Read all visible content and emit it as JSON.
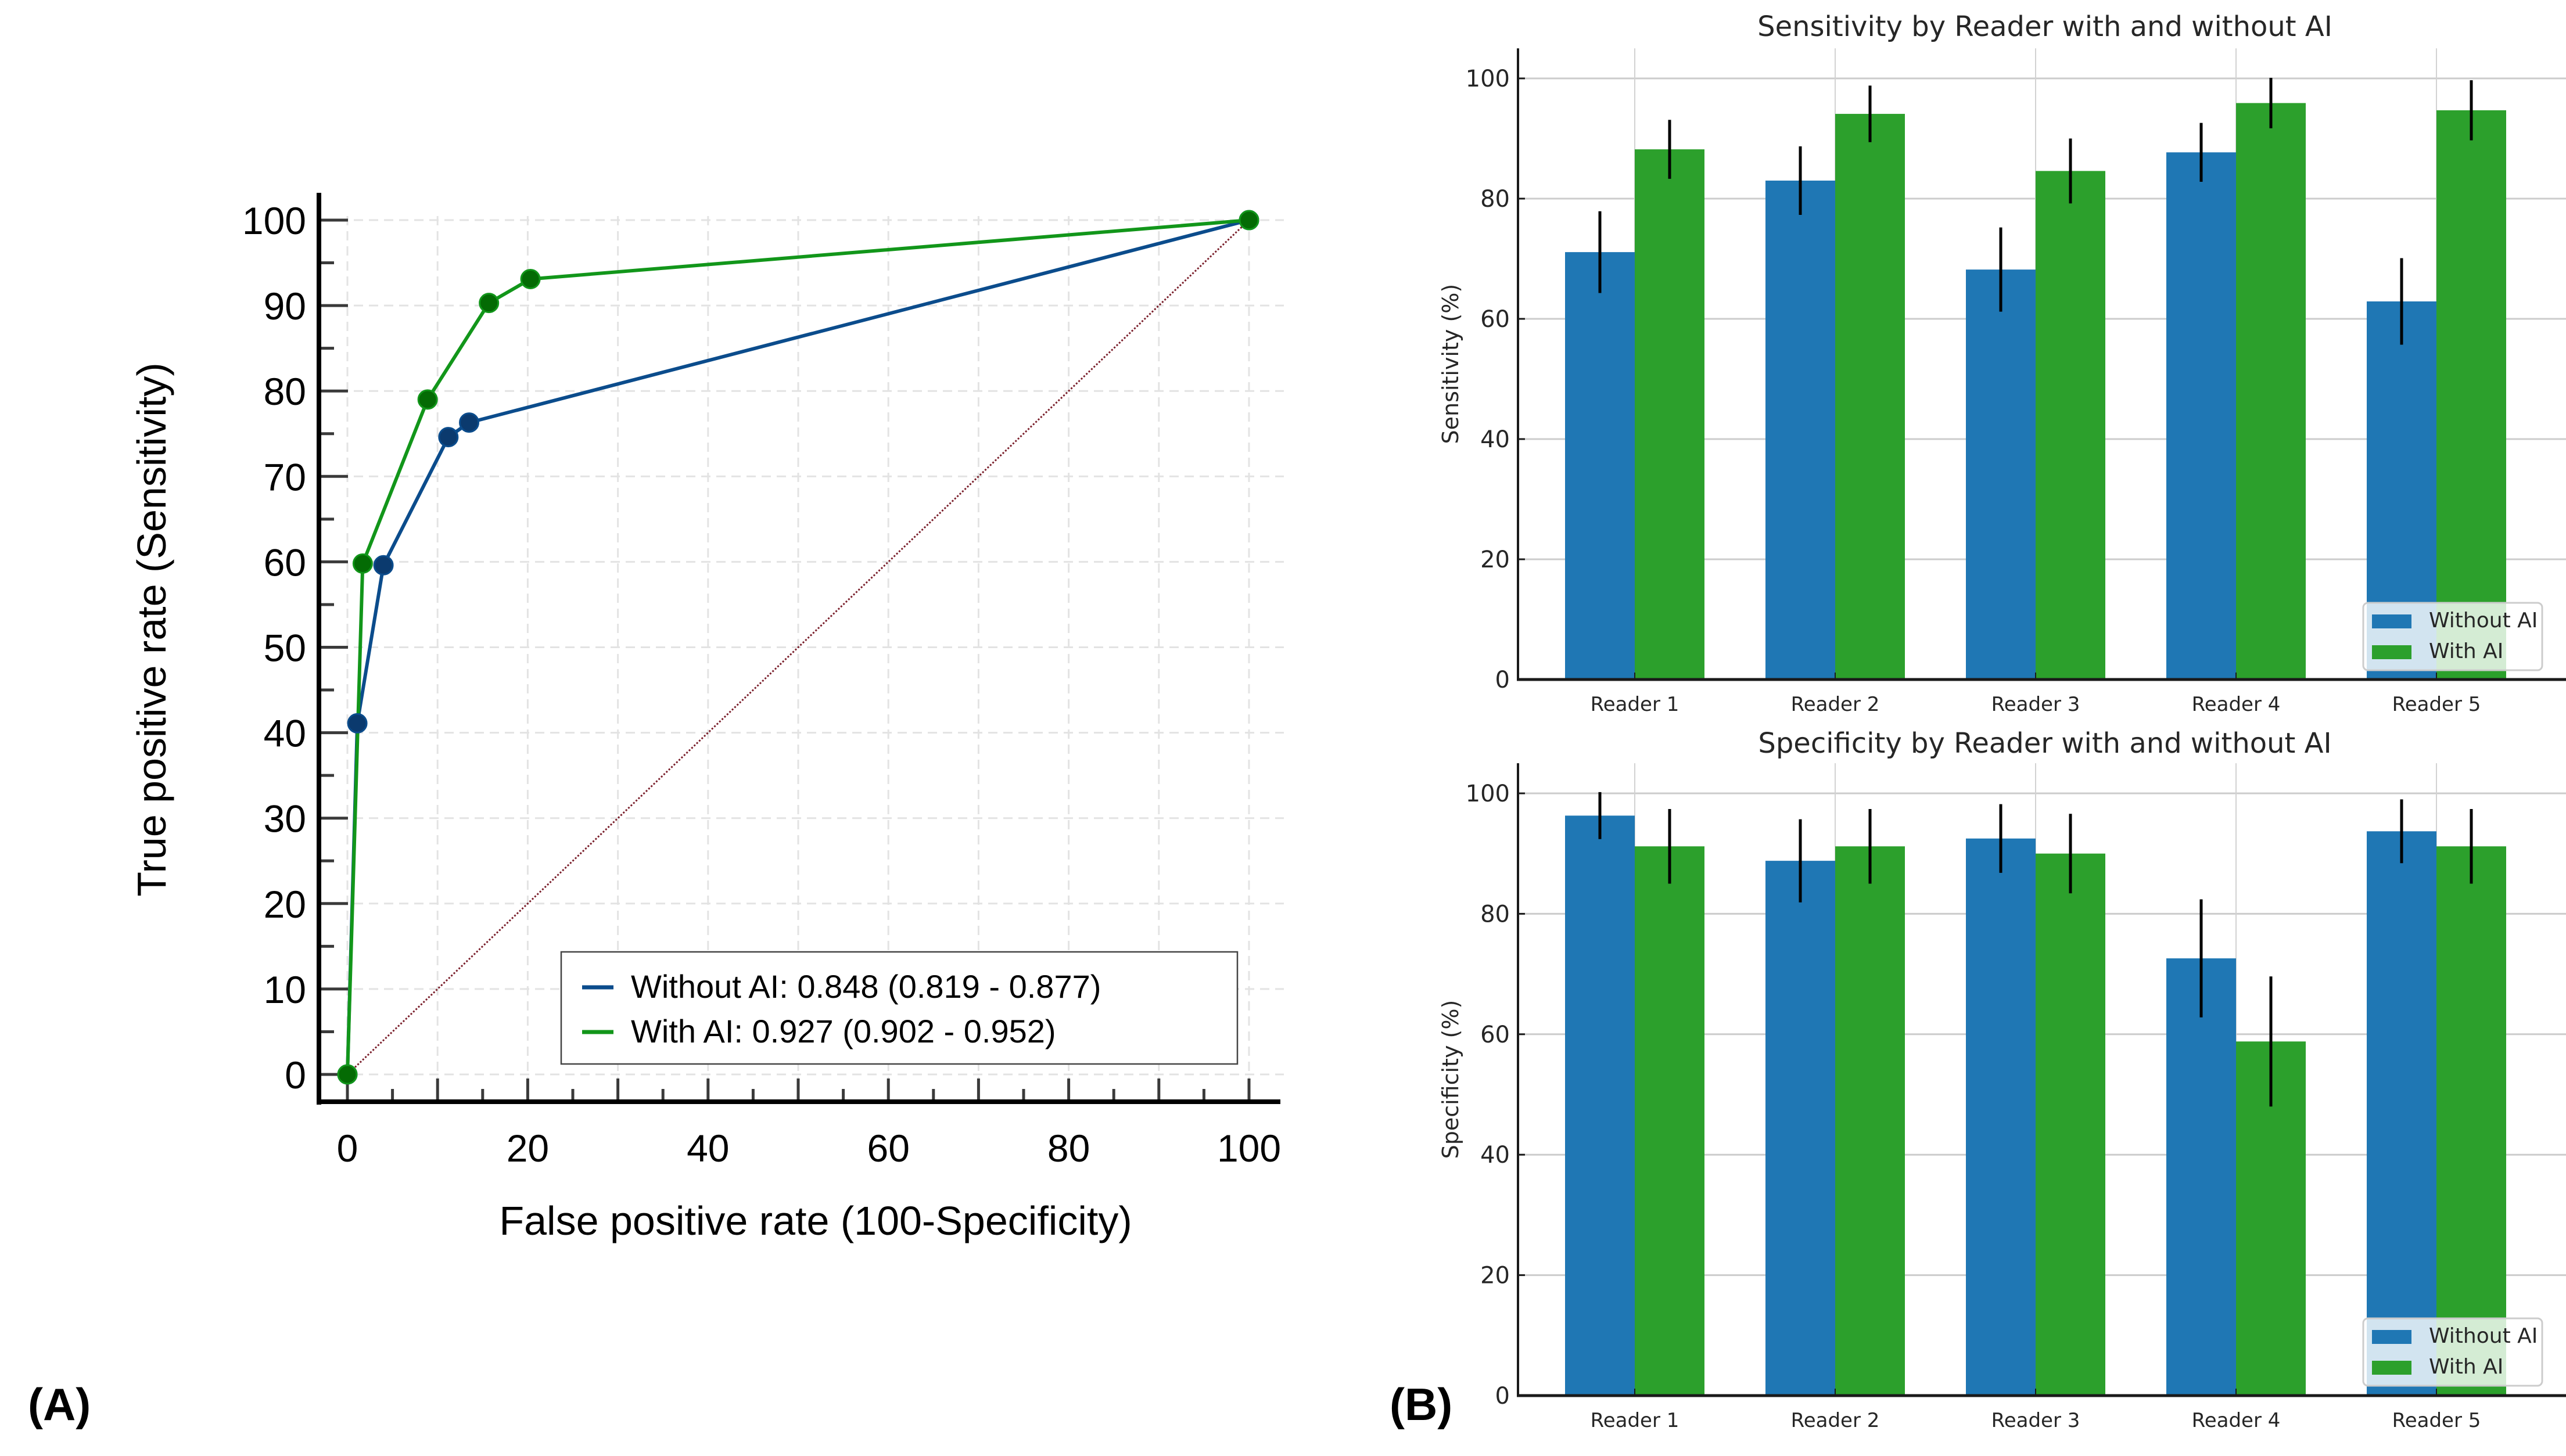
{
  "panels": {
    "a_label": "(A)",
    "b_label": "(B)"
  },
  "chart_data": [
    {
      "type": "line",
      "title": "",
      "xlabel": "False positive rate (100-Specificity)",
      "ylabel": "True positive rate (Sensitivity)",
      "xlim": [
        0,
        100
      ],
      "ylim": [
        0,
        100
      ],
      "xticks": [
        0,
        20,
        40,
        60,
        80,
        100
      ],
      "yticks": [
        0,
        10,
        20,
        30,
        40,
        50,
        60,
        70,
        80,
        90,
        100
      ],
      "grid": true,
      "legend_position": "bottom-right",
      "reference_line": {
        "name": "chance",
        "x": [
          0,
          100
        ],
        "y": [
          0,
          100
        ],
        "color": "#7a1f2b",
        "style": "dotted"
      },
      "series": [
        {
          "name": "Without AI",
          "legend": "Without AI: 0.848 (0.819 - 0.877)",
          "color": "#0b4c8c",
          "marker_color": "#0b3a6e",
          "x": [
            0,
            1.1,
            4.0,
            11.2,
            13.5,
            100
          ],
          "y": [
            0,
            41.1,
            59.6,
            74.6,
            76.3,
            100
          ]
        },
        {
          "name": "With AI",
          "legend": "With AI: 0.927 (0.902 - 0.952)",
          "color": "#12961a",
          "marker_color": "#046b04",
          "x": [
            0,
            1.7,
            8.9,
            15.7,
            20.3,
            100
          ],
          "y": [
            0,
            59.8,
            79.0,
            90.3,
            93.1,
            100
          ]
        }
      ]
    },
    {
      "type": "bar",
      "title": "Sensitivity by Reader with and without AI",
      "xlabel": "",
      "ylabel": "Sensitivity (%)",
      "ylim": [
        0,
        105
      ],
      "yticks": [
        0,
        20,
        40,
        60,
        80,
        100
      ],
      "grid": true,
      "legend_position": "bottom-right",
      "categories": [
        "Reader 1",
        "Reader 2",
        "Reader 3",
        "Reader 4",
        "Reader 5"
      ],
      "series": [
        {
          "name": "Without AI",
          "color": "#1f77b4",
          "values": [
            71.1,
            83.0,
            68.2,
            87.7,
            62.9
          ],
          "errors": [
            6.8,
            5.7,
            7.0,
            4.9,
            7.2
          ]
        },
        {
          "name": "With AI",
          "color": "#2ca02c",
          "values": [
            88.2,
            94.1,
            84.6,
            95.9,
            94.7
          ],
          "errors": [
            4.9,
            4.7,
            5.4,
            4.2,
            5.0
          ]
        }
      ]
    },
    {
      "type": "bar",
      "title": "Specificity by Reader with and without AI",
      "xlabel": "",
      "ylabel": "Specificity (%)",
      "ylim": [
        0,
        105
      ],
      "yticks": [
        0,
        20,
        40,
        60,
        80,
        100
      ],
      "grid": true,
      "legend_position": "bottom-right",
      "categories": [
        "Reader 1",
        "Reader 2",
        "Reader 3",
        "Reader 4",
        "Reader 5"
      ],
      "series": [
        {
          "name": "Without AI",
          "color": "#1f77b4",
          "values": [
            96.3,
            88.8,
            92.5,
            72.6,
            93.7
          ],
          "errors": [
            3.9,
            6.9,
            5.7,
            9.8,
            5.3
          ]
        },
        {
          "name": "With AI",
          "color": "#2ca02c",
          "values": [
            91.2,
            91.2,
            90.0,
            58.8,
            91.2
          ],
          "errors": [
            6.2,
            6.2,
            6.6,
            10.8,
            6.2
          ]
        }
      ]
    }
  ]
}
